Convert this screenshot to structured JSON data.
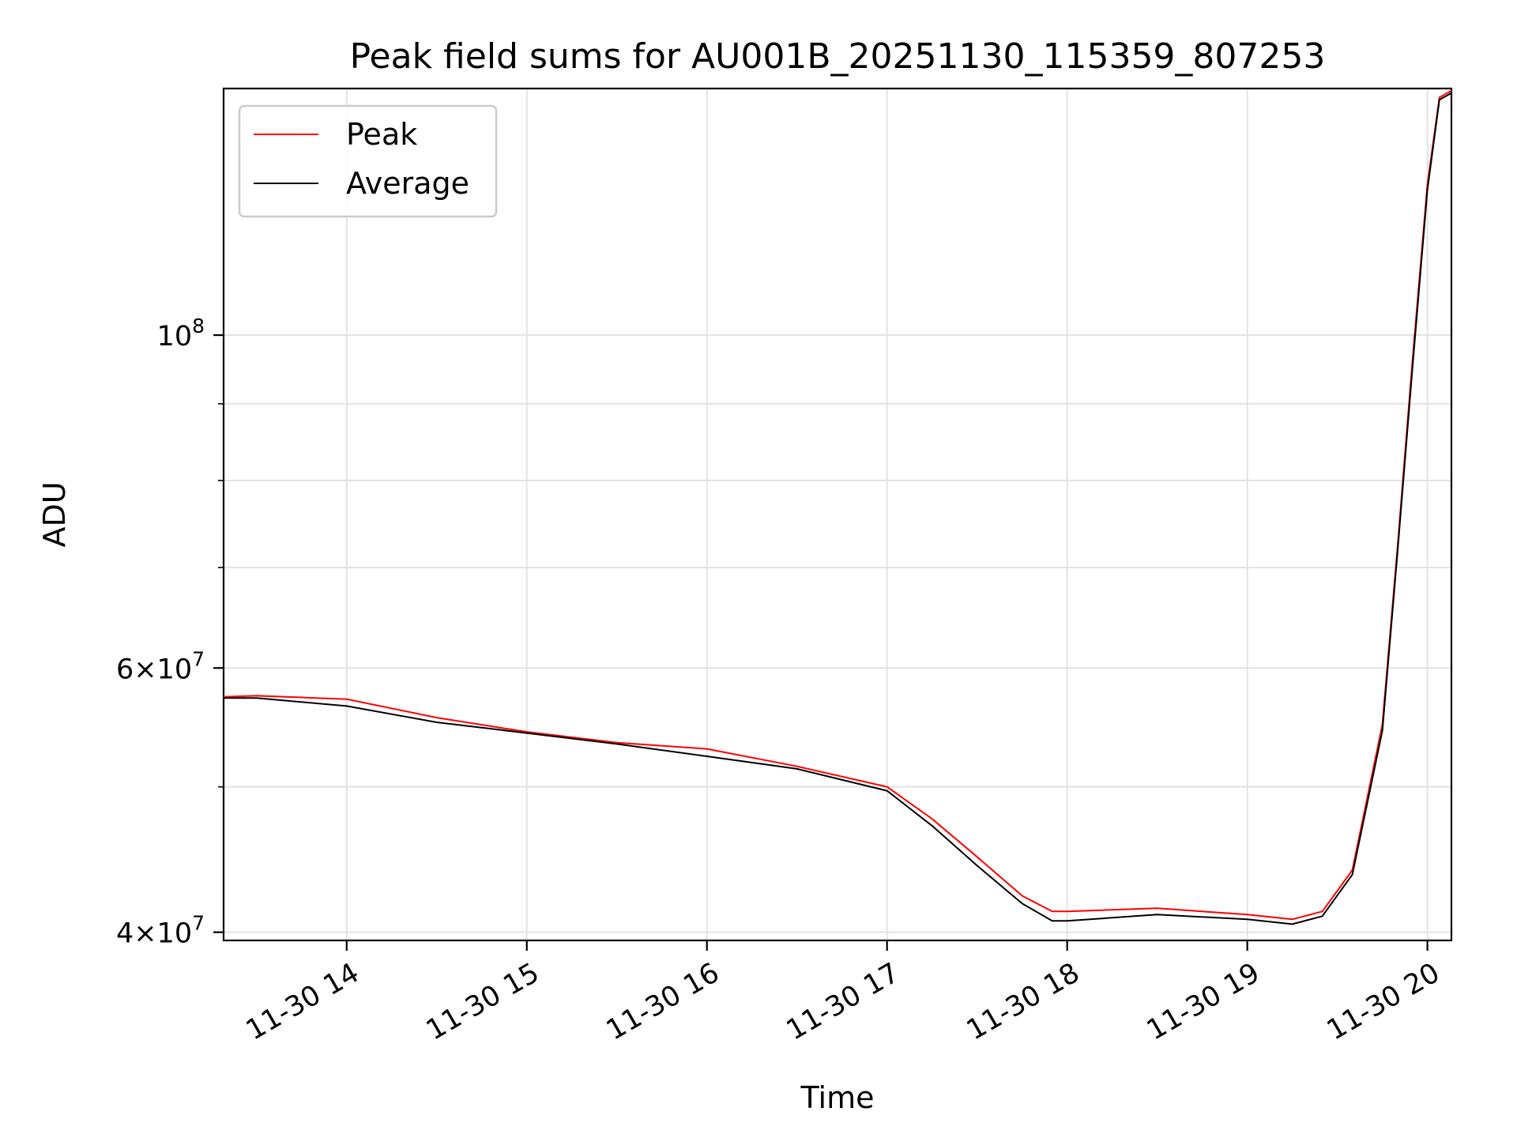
{
  "chart_data": {
    "type": "line",
    "title": "Peak field sums for AU001B_20251130_115359_807253",
    "xlabel": "Time",
    "ylabel": "ADU",
    "yscale": "log",
    "grid": true,
    "legend_position": "top-left",
    "xlim": [
      "2025-11-30 13:19",
      "2025-11-30 20:08"
    ],
    "ylim": [
      39500000,
      146000000
    ],
    "x_ticks": [
      {
        "value": "2025-11-30 14:00",
        "label": "11-30 14"
      },
      {
        "value": "2025-11-30 15:00",
        "label": "11-30 15"
      },
      {
        "value": "2025-11-30 16:00",
        "label": "11-30 16"
      },
      {
        "value": "2025-11-30 17:00",
        "label": "11-30 17"
      },
      {
        "value": "2025-11-30 18:00",
        "label": "11-30 18"
      },
      {
        "value": "2025-11-30 19:00",
        "label": "11-30 19"
      },
      {
        "value": "2025-11-30 20:00",
        "label": "11-30 20"
      }
    ],
    "y_ticks_major": [
      {
        "value": 40000000,
        "mantissa": "4",
        "exponent": "7"
      },
      {
        "value": 60000000,
        "mantissa": "6",
        "exponent": "7"
      },
      {
        "value": 100000000,
        "mantissa": "10",
        "exponent": "8"
      }
    ],
    "y_ticks_minor": [
      50000000,
      70000000,
      80000000,
      90000000
    ],
    "series": [
      {
        "name": "Peak",
        "color": "#ff0000",
        "x": [
          "2025-11-30 13:19",
          "2025-11-30 13:30",
          "2025-11-30 14:00",
          "2025-11-30 14:30",
          "2025-11-30 15:00",
          "2025-11-30 15:30",
          "2025-11-30 16:00",
          "2025-11-30 16:30",
          "2025-11-30 17:00",
          "2025-11-30 17:15",
          "2025-11-30 17:30",
          "2025-11-30 17:45",
          "2025-11-30 17:55",
          "2025-11-30 18:00",
          "2025-11-30 18:30",
          "2025-11-30 19:00",
          "2025-11-30 19:15",
          "2025-11-30 19:25",
          "2025-11-30 19:35",
          "2025-11-30 19:45",
          "2025-11-30 19:50",
          "2025-11-30 19:55",
          "2025-11-30 20:00",
          "2025-11-30 20:04",
          "2025-11-30 20:08"
        ],
        "values": [
          57400000,
          57500000,
          57200000,
          55600000,
          54400000,
          53500000,
          53000000,
          51600000,
          50000000,
          47600000,
          44900000,
          42300000,
          41300000,
          41300000,
          41500000,
          41100000,
          40800000,
          41300000,
          44000000,
          55000000,
          72000000,
          96000000,
          126000000,
          144000000,
          145500000
        ]
      },
      {
        "name": "Average",
        "color": "#000000",
        "x": [
          "2025-11-30 13:19",
          "2025-11-30 13:30",
          "2025-11-30 14:00",
          "2025-11-30 14:30",
          "2025-11-30 15:00",
          "2025-11-30 15:30",
          "2025-11-30 16:00",
          "2025-11-30 16:30",
          "2025-11-30 17:00",
          "2025-11-30 17:15",
          "2025-11-30 17:30",
          "2025-11-30 17:45",
          "2025-11-30 17:55",
          "2025-11-30 18:00",
          "2025-11-30 18:30",
          "2025-11-30 19:00",
          "2025-11-30 19:15",
          "2025-11-30 19:25",
          "2025-11-30 19:35",
          "2025-11-30 19:45",
          "2025-11-30 19:50",
          "2025-11-30 19:55",
          "2025-11-30 20:00",
          "2025-11-30 20:04",
          "2025-11-30 20:08"
        ],
        "values": [
          57300000,
          57300000,
          56600000,
          55200000,
          54300000,
          53400000,
          52400000,
          51400000,
          49700000,
          47100000,
          44300000,
          41800000,
          40700000,
          40700000,
          41100000,
          40800000,
          40500000,
          41000000,
          43700000,
          54500000,
          71500000,
          95000000,
          125000000,
          143500000,
          145000000
        ]
      }
    ]
  }
}
